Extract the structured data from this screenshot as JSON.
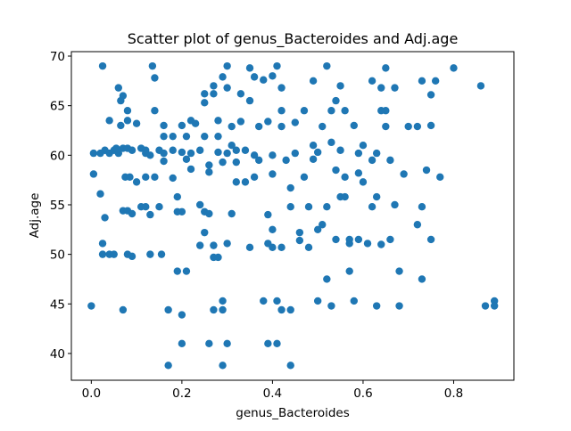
{
  "chart_data": {
    "type": "scatter",
    "title": "Scatter plot of genus_Bacteroides and Adj.age",
    "x_label": "genus_Bacteroides",
    "y_label": "Adj.age",
    "color": "#1f77b4",
    "xlim": [
      -0.044,
      0.933
    ],
    "ylim": [
      37.3,
      70.45
    ],
    "xticks": [
      {
        "value": 0,
        "label": "0.0"
      },
      0.2,
      0.4,
      0.6,
      0.8
    ],
    "yticks": [
      40,
      45,
      50,
      55,
      60,
      65,
      70
    ],
    "x": [
      0.0,
      0.005,
      0.005,
      0.02,
      0.025,
      0.025,
      0.025,
      0.03,
      0.03,
      0.04,
      0.04,
      0.05,
      0.02,
      0.04,
      0.05,
      0.055,
      0.06,
      0.06,
      0.065,
      0.065,
      0.07,
      0.07,
      0.07,
      0.07,
      0.075,
      0.08,
      0.08,
      0.08,
      0.08,
      0.08,
      0.085,
      0.09,
      0.09,
      0.09,
      0.1,
      0.1,
      0.11,
      0.11,
      0.12,
      0.12,
      0.12,
      0.12,
      0.13,
      0.13,
      0.13,
      0.135,
      0.14,
      0.14,
      0.14,
      0.15,
      0.15,
      0.155,
      0.16,
      0.16,
      0.16,
      0.16,
      0.17,
      0.17,
      0.18,
      0.18,
      0.18,
      0.19,
      0.19,
      0.19,
      0.2,
      0.2,
      0.2,
      0.2,
      0.2,
      0.21,
      0.21,
      0.21,
      0.22,
      0.22,
      0.22,
      0.23,
      0.24,
      0.24,
      0.24,
      0.25,
      0.25,
      0.25,
      0.25,
      0.25,
      0.26,
      0.26,
      0.26,
      0.26,
      0.27,
      0.27,
      0.27,
      0.27,
      0.27,
      0.28,
      0.28,
      0.28,
      0.28,
      0.29,
      0.29,
      0.29,
      0.29,
      0.29,
      0.3,
      0.3,
      0.3,
      0.3,
      0.3,
      0.31,
      0.31,
      0.31,
      0.32,
      0.32,
      0.32,
      0.33,
      0.33,
      0.34,
      0.34,
      0.35,
      0.35,
      0.35,
      0.36,
      0.36,
      0.36,
      0.37,
      0.37,
      0.38,
      0.38,
      0.39,
      0.39,
      0.39,
      0.39,
      0.4,
      0.4,
      0.4,
      0.4,
      0.4,
      0.41,
      0.41,
      0.41,
      0.42,
      0.42,
      0.42,
      0.42,
      0.42,
      0.43,
      0.44,
      0.44,
      0.44,
      0.44,
      0.45,
      0.45,
      0.46,
      0.46,
      0.47,
      0.47,
      0.48,
      0.48,
      0.49,
      0.49,
      0.49,
      0.5,
      0.5,
      0.5,
      0.51,
      0.51,
      0.52,
      0.52,
      0.53,
      0.53,
      0.54,
      0.54,
      0.55,
      0.55,
      0.55,
      0.56,
      0.56,
      0.57,
      0.57,
      0.58,
      0.59,
      0.59,
      0.59,
      0.6,
      0.61,
      0.62,
      0.62,
      0.63,
      0.63,
      0.63,
      0.64,
      0.64,
      0.65,
      0.65,
      0.65,
      0.66,
      0.66,
      0.67,
      0.67,
      0.68,
      0.68,
      0.69,
      0.7,
      0.72,
      0.72,
      0.73,
      0.73,
      0.73,
      0.74,
      0.75,
      0.75,
      0.75,
      0.76,
      0.77,
      0.8,
      0.86,
      0.87,
      0.89,
      0.89,
      0.52,
      0.53,
      0.54,
      0.56,
      0.58,
      0.6,
      0.62,
      0.64,
      0.57
    ],
    "values": [
      44.8,
      60.2,
      58.1,
      56.1,
      69.0,
      51.1,
      50.0,
      53.7,
      60.5,
      63.5,
      50.0,
      50.0,
      60.2,
      60.2,
      60.5,
      60.7,
      66.8,
      60.2,
      63.0,
      65.5,
      66.0,
      60.7,
      54.4,
      44.4,
      57.8,
      63.5,
      64.5,
      60.7,
      54.4,
      50.0,
      57.8,
      49.8,
      60.5,
      54.1,
      57.3,
      63.2,
      54.8,
      60.7,
      54.8,
      60.2,
      57.8,
      60.5,
      50.0,
      54.0,
      60.0,
      69.0,
      57.8,
      64.5,
      67.8,
      54.8,
      60.5,
      50.0,
      63.0,
      61.9,
      60.2,
      59.4,
      38.8,
      44.4,
      61.9,
      60.5,
      57.7,
      55.8,
      54.3,
      48.3,
      43.9,
      41.0,
      54.3,
      60.3,
      63.0,
      48.3,
      61.9,
      59.6,
      63.5,
      60.2,
      58.6,
      63.2,
      55.0,
      50.9,
      60.5,
      52.2,
      54.3,
      65.3,
      66.2,
      61.9,
      59.0,
      58.3,
      41.0,
      54.1,
      50.9,
      49.7,
      44.4,
      67.0,
      66.2,
      49.7,
      61.9,
      60.3,
      63.5,
      67.9,
      38.8,
      44.4,
      45.3,
      59.3,
      41.0,
      51.1,
      69.0,
      66.8,
      60.2,
      61.0,
      62.9,
      54.1,
      57.3,
      59.3,
      60.5,
      66.2,
      63.4,
      60.5,
      57.3,
      50.7,
      65.5,
      68.8,
      57.8,
      60.0,
      67.9,
      62.9,
      59.5,
      45.3,
      67.6,
      54.0,
      51.1,
      41.0,
      63.4,
      60.0,
      58.1,
      52.5,
      50.7,
      68.0,
      41.0,
      45.3,
      69.0,
      66.8,
      64.5,
      62.9,
      44.4,
      50.7,
      59.5,
      56.7,
      54.8,
      38.8,
      44.4,
      63.3,
      60.2,
      51.4,
      52.2,
      64.5,
      57.8,
      54.8,
      50.7,
      67.5,
      61.0,
      59.6,
      60.3,
      52.5,
      45.3,
      62.9,
      53.0,
      47.5,
      54.8,
      44.8,
      61.3,
      58.5,
      51.5,
      55.8,
      60.5,
      67.0,
      64.5,
      55.8,
      51.1,
      48.3,
      45.3,
      58.2,
      60.2,
      51.5,
      61.0,
      51.1,
      59.5,
      54.8,
      44.8,
      55.8,
      60.2,
      66.8,
      51.0,
      62.9,
      64.5,
      68.8,
      59.5,
      51.5,
      55.0,
      66.8,
      48.3,
      44.8,
      58.1,
      62.9,
      53.0,
      62.9,
      67.5,
      54.8,
      47.5,
      58.5,
      63.0,
      66.1,
      51.5,
      67.5,
      57.8,
      68.8,
      67.0,
      44.8,
      45.3,
      44.8,
      69.0,
      64.5,
      65.5,
      57.8,
      63.0,
      57.3,
      67.5,
      64.5,
      51.5
    ]
  }
}
